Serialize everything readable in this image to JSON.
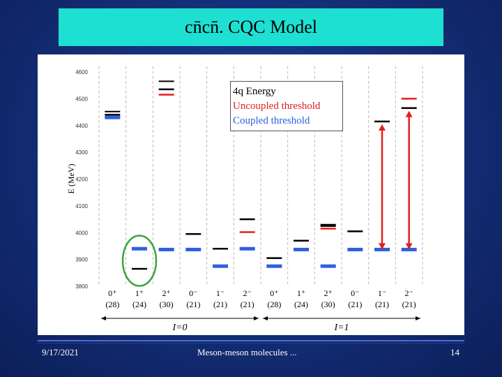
{
  "slide": {
    "title": "cn̄cn̄. CQC Model",
    "footer_date": "9/17/2021",
    "footer_center": "Meson-meson molecules ...",
    "footer_page": "14"
  },
  "legend": {
    "energy": "4q Energy",
    "uncoupled": "Uncoupled threshold",
    "coupled": "Coupled threshold",
    "colors": {
      "energy": "#000000",
      "uncoupled": "#e02020",
      "coupled": "#2f5fe0"
    }
  },
  "chart_data": {
    "type": "level-diagram",
    "ylabel": "E (MeV)",
    "ylim": [
      3800,
      4600
    ],
    "yticks": [
      3800,
      3900,
      4000,
      4100,
      4200,
      4300,
      4400,
      4500,
      4600
    ],
    "categories": [
      {
        "jp": "0⁺",
        "n": "(28)"
      },
      {
        "jp": "1⁺",
        "n": "(24)"
      },
      {
        "jp": "2⁺",
        "n": "(30)"
      },
      {
        "jp": "0⁻",
        "n": "(21)"
      },
      {
        "jp": "1⁻",
        "n": "(21)"
      },
      {
        "jp": "2⁻",
        "n": "(21)"
      },
      {
        "jp": "0⁺",
        "n": "(28)"
      },
      {
        "jp": "1⁺",
        "n": "(24)"
      },
      {
        "jp": "2⁺",
        "n": "(30)"
      },
      {
        "jp": "0⁻",
        "n": "(21)"
      },
      {
        "jp": "1⁻",
        "n": "(21)"
      },
      {
        "jp": "2⁻",
        "n": "(21)"
      }
    ],
    "groups": [
      {
        "label": "I=0",
        "from": 0,
        "to": 5
      },
      {
        "label": "I=1",
        "from": 6,
        "to": 11
      }
    ],
    "series": [
      {
        "name": "4q Energy",
        "color": "#000000",
        "values": [
          [
            0,
            4440
          ],
          [
            1,
            3865
          ],
          [
            2,
            4535
          ],
          [
            3,
            3995
          ],
          [
            4,
            3940
          ],
          [
            5,
            4050
          ],
          [
            6,
            3905
          ],
          [
            7,
            3970
          ],
          [
            8,
            4025
          ],
          [
            9,
            4005
          ],
          [
            10,
            4415
          ],
          [
            11,
            4465
          ]
        ]
      },
      {
        "name": "Uncoupled threshold",
        "color": "#e02020",
        "values": [
          [
            2,
            4515
          ],
          [
            5,
            4002
          ],
          [
            8,
            4015
          ],
          [
            11,
            4500
          ]
        ]
      },
      {
        "name": "Coupled threshold",
        "color": "#2f5fe0",
        "values": [
          [
            0,
            4430
          ],
          [
            1,
            3940
          ],
          [
            2,
            3937
          ],
          [
            3,
            3937
          ],
          [
            4,
            3875
          ],
          [
            5,
            3940
          ],
          [
            6,
            3875
          ],
          [
            7,
            3937
          ],
          [
            8,
            3875
          ],
          [
            9,
            3937
          ],
          [
            10,
            3937
          ],
          [
            11,
            3937
          ]
        ]
      }
    ],
    "arrows": [
      {
        "col": 10,
        "from": 3937,
        "to": 4415
      },
      {
        "col": 11,
        "from": 3937,
        "to": 4465
      }
    ],
    "highlight": {
      "col": 1,
      "shape": "ellipse",
      "color": "#3aa53a"
    }
  }
}
